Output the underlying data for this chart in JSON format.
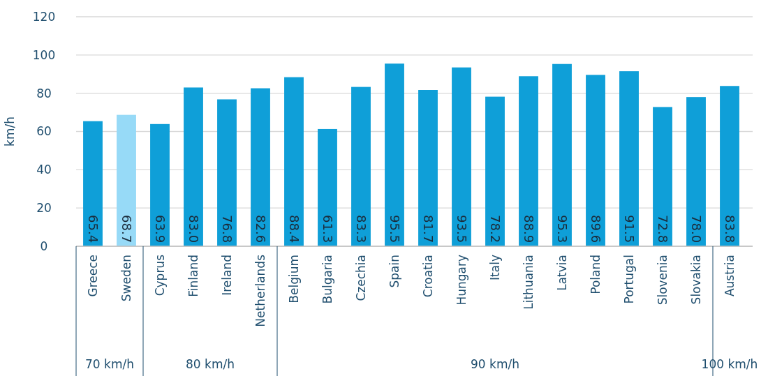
{
  "chart_data": {
    "type": "bar",
    "ylabel": "km/h",
    "categories": [
      "Greece",
      "Sweden",
      "Cyprus",
      "Finland",
      "Ireland",
      "Netherlands",
      "Belgium",
      "Bulgaria",
      "Czechia",
      "Spain",
      "Croatia",
      "Hungary",
      "Italy",
      "Lithuania",
      "Latvia",
      "Poland",
      "Portugal",
      "Slovenia",
      "Slovakia",
      "Austria"
    ],
    "values": [
      65.4,
      68.7,
      63.9,
      83.0,
      76.8,
      82.6,
      88.4,
      61.3,
      83.3,
      95.5,
      81.7,
      93.5,
      78.2,
      88.9,
      95.3,
      89.6,
      91.5,
      72.8,
      78.0,
      83.8
    ],
    "colors": [
      "#0f9fd8",
      "#97daf7",
      "#0f9fd8",
      "#0f9fd8",
      "#0f9fd8",
      "#0f9fd8",
      "#0f9fd8",
      "#0f9fd8",
      "#0f9fd8",
      "#0f9fd8",
      "#0f9fd8",
      "#0f9fd8",
      "#0f9fd8",
      "#0f9fd8",
      "#0f9fd8",
      "#0f9fd8",
      "#0f9fd8",
      "#0f9fd8",
      "#0f9fd8",
      "#0f9fd8"
    ],
    "value_labels": [
      "65.4",
      "68.7",
      "63.9",
      "83.0",
      "76.8",
      "82.6",
      "88.4",
      "61.3",
      "83.3",
      "95.5",
      "81.7",
      "93.5",
      "78.2",
      "88.9",
      "95.3",
      "89.6",
      "91.5",
      "72.8",
      "78.0",
      "83.8"
    ],
    "ylim": [
      0,
      120
    ],
    "yticks": [
      0,
      20,
      40,
      60,
      80,
      100,
      120
    ],
    "grid": "y",
    "annotations": [
      "70 km/h",
      "80 km/h",
      "90 km/h",
      "100 km/h"
    ]
  }
}
